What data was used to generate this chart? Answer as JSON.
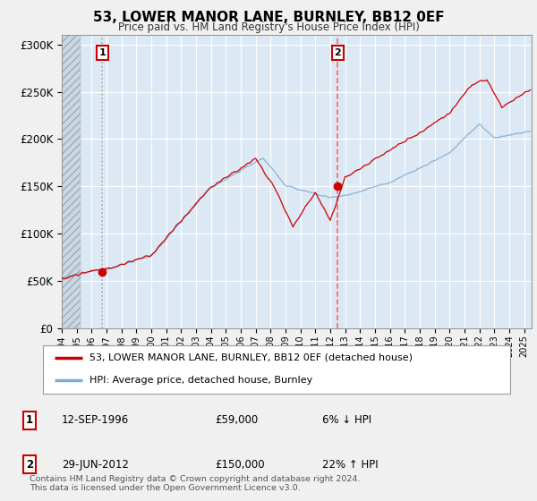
{
  "title": "53, LOWER MANOR LANE, BURNLEY, BB12 0EF",
  "subtitle": "Price paid vs. HM Land Registry's House Price Index (HPI)",
  "ylabel_ticks": [
    "£0",
    "£50K",
    "£100K",
    "£150K",
    "£200K",
    "£250K",
    "£300K"
  ],
  "ytick_values": [
    0,
    50000,
    100000,
    150000,
    200000,
    250000,
    300000
  ],
  "ylim": [
    0,
    310000
  ],
  "xlim_start": 1994.0,
  "xlim_end": 2025.5,
  "sale1_date": 1996.71,
  "sale1_price": 59000,
  "sale1_label": "1",
  "sale2_date": 2012.49,
  "sale2_price": 150000,
  "sale2_label": "2",
  "price_line_color": "#cc0000",
  "hpi_line_color": "#7dadd4",
  "sale1_vline_color": "#aaaaaa",
  "sale2_vline_color": "#ff6666",
  "background_color": "#f0f0f0",
  "plot_bg_color": "#dce9f5",
  "hatch_bg_color": "#c8d8e8",
  "legend_label_price": "53, LOWER MANOR LANE, BURNLEY, BB12 0EF (detached house)",
  "legend_label_hpi": "HPI: Average price, detached house, Burnley",
  "table_row1": [
    "1",
    "12-SEP-1996",
    "£59,000",
    "6% ↓ HPI"
  ],
  "table_row2": [
    "2",
    "29-JUN-2012",
    "£150,000",
    "22% ↑ HPI"
  ],
  "footer": "Contains HM Land Registry data © Crown copyright and database right 2024.\nThis data is licensed under the Open Government Licence v3.0.",
  "hatch_region_end": 1995.25,
  "noise_seed": 12345,
  "hpi_noise_scale": 1500,
  "price_noise_scale": 2500
}
